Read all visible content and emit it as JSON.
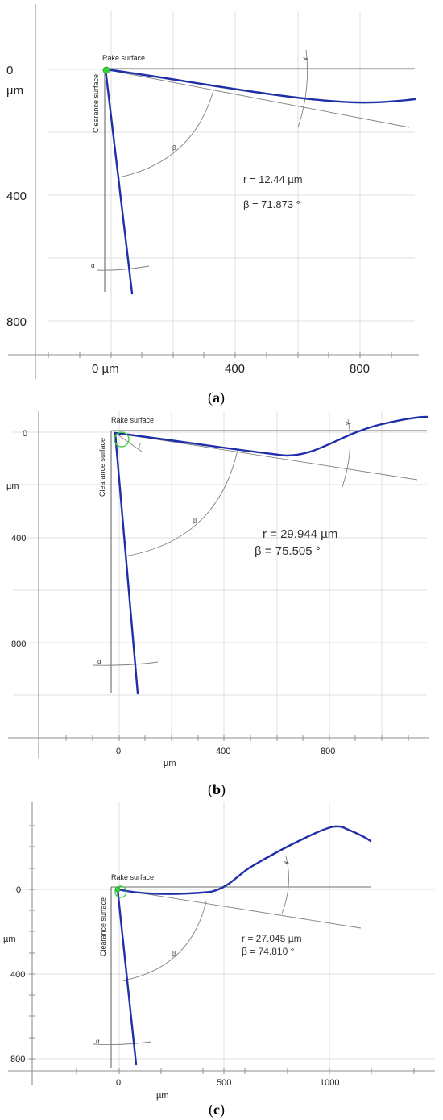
{
  "panels": [
    {
      "id": "a",
      "caption_open": "(",
      "caption_letter": "a",
      "caption_close": ")",
      "rake_surface_label": "Rake surface",
      "clearance_surface_label": "Clearance surface",
      "r_text": "r = 12.44 µm",
      "beta_text": "β = 71.873 °",
      "beta_symbol": "β",
      "alpha_symbol": "α",
      "gamma_symbol": "γ",
      "x_ticks": [
        "0 µm",
        "400",
        "800"
      ],
      "y_ticks": [
        "0",
        "400",
        "800"
      ],
      "y_unit": "µm"
    },
    {
      "id": "b",
      "caption_open": "(",
      "caption_letter": "b",
      "caption_close": ")",
      "rake_surface_label": "Rake surface",
      "clearance_surface_label": "Clearance surface",
      "r_symbol": "r",
      "r_text": "r = 29.944 µm",
      "beta_text": "β = 75.505 °",
      "beta_symbol": "β",
      "alpha_symbol": "α",
      "gamma_symbol": "γ",
      "x_ticks": [
        "0",
        "400",
        "800"
      ],
      "x_unit": "µm",
      "y_ticks": [
        "0",
        "400",
        "800"
      ],
      "y_unit": "µm"
    },
    {
      "id": "c",
      "caption_open": "(",
      "caption_letter": "c",
      "caption_close": ")",
      "rake_surface_label": "Rake surface",
      "clearance_surface_label": "Clearance surface",
      "r_text": "r = 27.045 µm",
      "beta_text": "β = 74.810 °",
      "beta_symbol": "β",
      "alpha_symbol": "α",
      "gamma_symbol": "γ",
      "x_ticks": [
        "0",
        "500",
        "1000"
      ],
      "x_unit": "µm",
      "y_ticks": [
        "0",
        "400",
        "800"
      ],
      "y_unit": "µm"
    }
  ]
}
